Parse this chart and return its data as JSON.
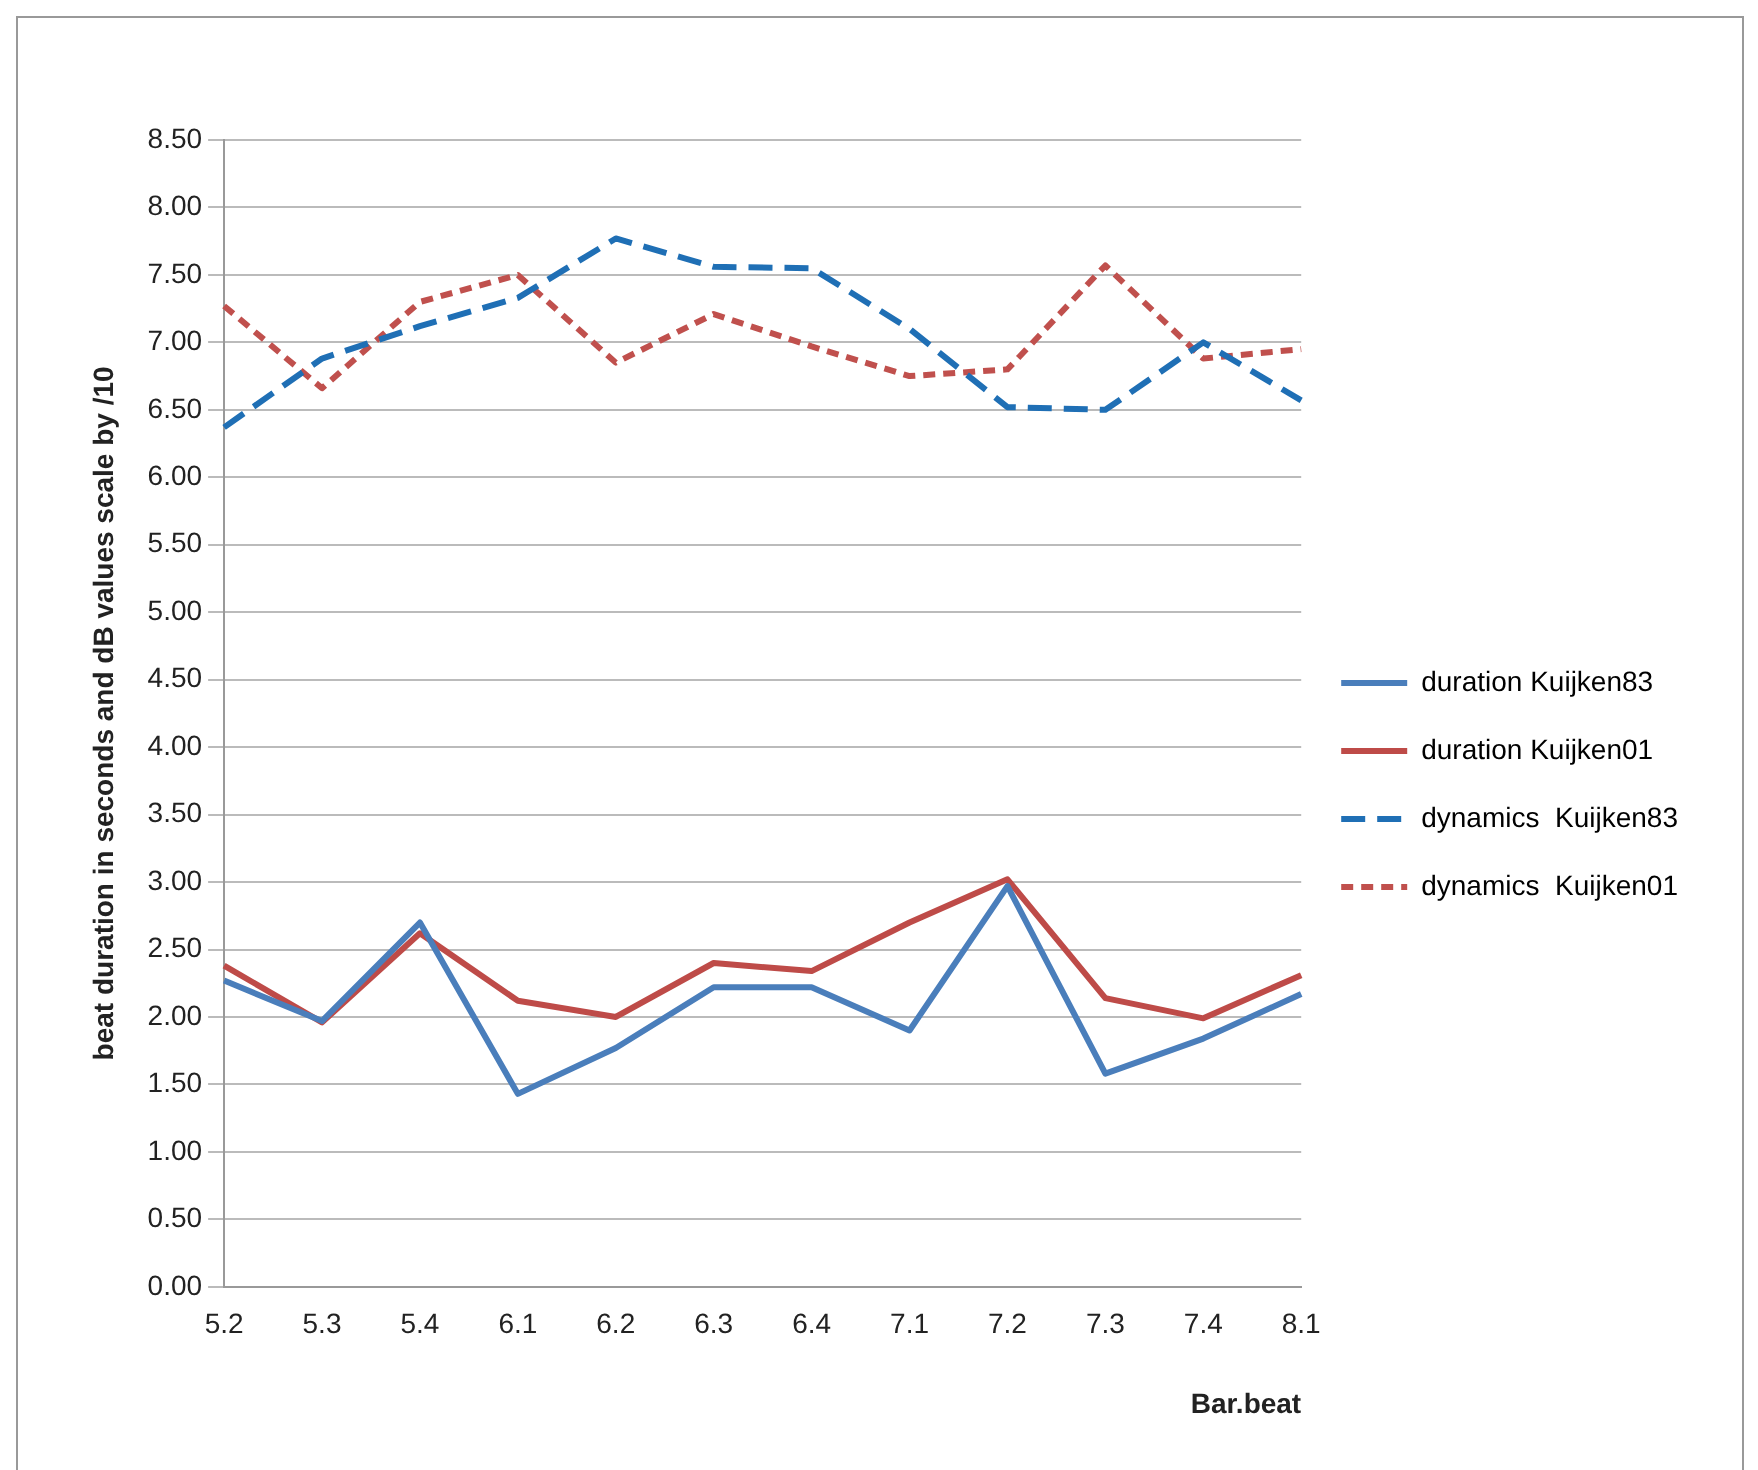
{
  "chart_data": {
    "type": "line",
    "xlabel": "Bar.beat",
    "ylabel": "beat duration in seconds and dB values scale by /10",
    "categories": [
      "5.2",
      "5.3",
      "5.4",
      "6.1",
      "6.2",
      "6.3",
      "6.4",
      "7.1",
      "7.2",
      "7.3",
      "7.4",
      "8.1"
    ],
    "series": [
      {
        "name": "duration Kuijken83",
        "color": "#4a7ebb",
        "line_style": "solid",
        "values": [
          2.27,
          1.97,
          2.7,
          1.43,
          1.77,
          2.22,
          2.22,
          1.9,
          2.97,
          1.58,
          1.84,
          2.17
        ]
      },
      {
        "name": "duration Kuijken01",
        "color": "#be4b48",
        "line_style": "solid",
        "values": [
          2.38,
          1.96,
          2.62,
          2.12,
          2.0,
          2.4,
          2.34,
          2.7,
          3.02,
          2.14,
          1.99,
          2.31
        ]
      },
      {
        "name": "dynamics  Kuijken83",
        "color": "#1f6fb5",
        "line_style": "dashed",
        "values": [
          6.37,
          6.88,
          7.12,
          7.33,
          7.77,
          7.56,
          7.55,
          7.1,
          6.52,
          6.5,
          7.0,
          6.57
        ]
      },
      {
        "name": "dynamics  Kuijken01",
        "color": "#c0504d",
        "line_style": "dotted",
        "values": [
          7.27,
          6.66,
          7.3,
          7.5,
          6.85,
          7.21,
          6.97,
          6.75,
          6.8,
          7.57,
          6.88,
          6.95
        ]
      }
    ],
    "ylim": [
      0,
      8.5
    ],
    "yticks": [
      {
        "value": 0,
        "label": "0.00"
      },
      {
        "value": 0.5,
        "label": "0.50"
      },
      {
        "value": 1,
        "label": "1.00"
      },
      {
        "value": 1.5,
        "label": "1.50"
      },
      {
        "value": 2,
        "label": "2.00"
      },
      {
        "value": 2.5,
        "label": "2.50"
      },
      {
        "value": 3,
        "label": "3.00"
      },
      {
        "value": 3.5,
        "label": "3.50"
      },
      {
        "value": 4,
        "label": "4.00"
      },
      {
        "value": 4.5,
        "label": "4.50"
      },
      {
        "value": 5,
        "label": "5.00"
      },
      {
        "value": 5.5,
        "label": "5.50"
      },
      {
        "value": 6,
        "label": "6.00"
      },
      {
        "value": 6.5,
        "label": "6.50"
      },
      {
        "value": 7,
        "label": "7.00"
      },
      {
        "value": 7.5,
        "label": "7.50"
      },
      {
        "value": 8,
        "label": "8.00"
      },
      {
        "value": 8.5,
        "label": "8.50"
      }
    ],
    "grid": "y",
    "legend": "right",
    "marker": "none"
  }
}
